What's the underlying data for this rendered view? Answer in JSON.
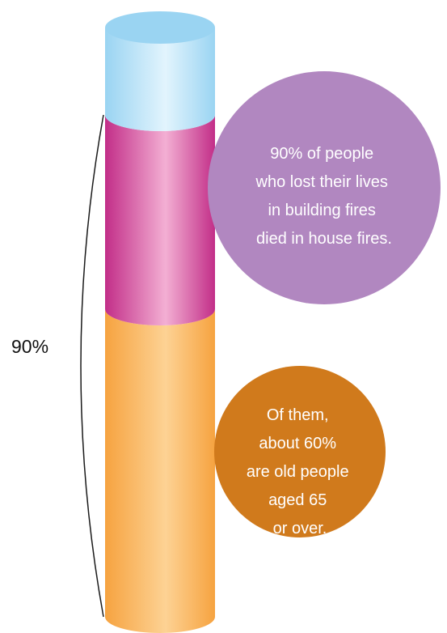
{
  "chart_data": {
    "type": "bar",
    "stacked": true,
    "bracket_label": "90%",
    "bracket_value": 90,
    "segments": [
      {
        "value": 54,
        "color": "#f6a340",
        "highlight": "#fdd294"
      },
      {
        "value": 36,
        "color": "#c22e88",
        "highlight": "#f3afd3"
      },
      {
        "value": 10,
        "color": "#9ad4f2",
        "highlight": "#e2f4fd"
      }
    ],
    "callouts": [
      {
        "lines": [
          "90% of people",
          "who lost their lives",
          "in building fires",
          "died in house fires."
        ],
        "color": "#b187c0"
      },
      {
        "lines": [
          "Of them,",
          "about 60%",
          "are old people",
          "aged 65",
          "or over."
        ],
        "color": "#d07a1c"
      }
    ]
  }
}
